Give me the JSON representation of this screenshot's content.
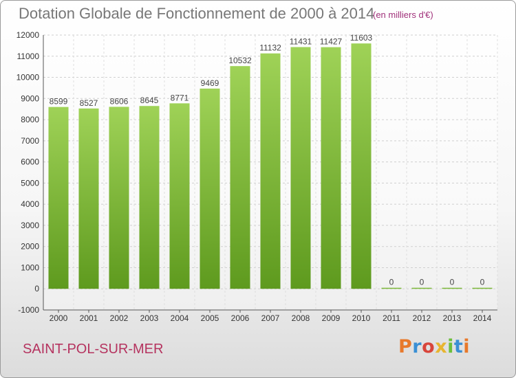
{
  "chart_data": {
    "type": "bar",
    "title": "Dotation Globale de Fonctionnement de 2000 à 2014",
    "subtitle": "(en milliers d'€)",
    "categories": [
      "2000",
      "2001",
      "2002",
      "2003",
      "2004",
      "2005",
      "2006",
      "2007",
      "2008",
      "2009",
      "2010",
      "2011",
      "2012",
      "2013",
      "2014"
    ],
    "values": [
      8599,
      8527,
      8606,
      8645,
      8771,
      9469,
      10532,
      11132,
      11431,
      11427,
      11603,
      0,
      0,
      0,
      0
    ],
    "ylim": [
      -1000,
      12000
    ],
    "yticks": [
      -1000,
      0,
      1000,
      2000,
      3000,
      4000,
      5000,
      6000,
      7000,
      8000,
      9000,
      10000,
      11000,
      12000
    ],
    "grid": true,
    "bar_color": "#7cb83a",
    "xlabel": "",
    "ylabel": ""
  },
  "footer": {
    "location": "SAINT-POL-SUR-MER",
    "brand": "Proxiti",
    "brand_colors": [
      "#e8792b",
      "#3a8fd4",
      "#d8453b",
      "#e8b530",
      "#6cbf3c",
      "#3a8fd4",
      "#e8792b"
    ]
  }
}
